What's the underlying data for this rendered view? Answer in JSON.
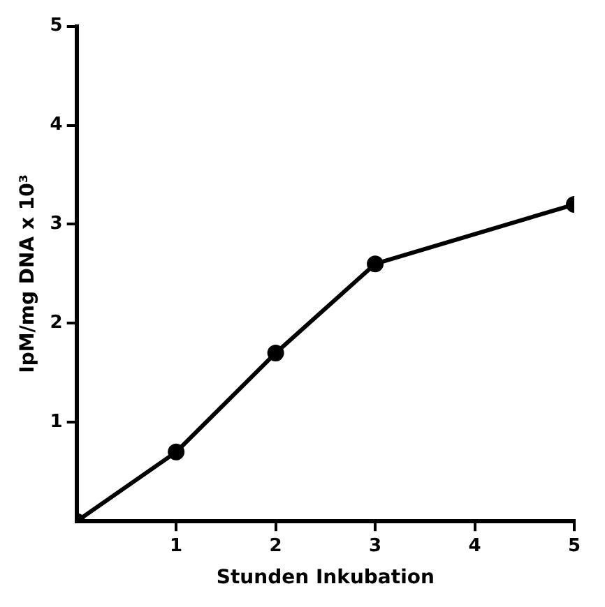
{
  "chart_data": {
    "type": "line",
    "xlabel": "Stunden Inkubation",
    "ylabel": "IpM/mg DNA x 10³",
    "x": [
      0,
      1,
      2,
      3,
      5
    ],
    "series": [
      {
        "color": "#000000",
        "values": [
          0,
          0.7,
          1.7,
          2.6,
          3.2
        ]
      }
    ],
    "xlim": [
      0,
      5
    ],
    "xticks": [
      1,
      2,
      3,
      4,
      5
    ],
    "ylim": [
      0,
      5
    ],
    "yticks": [
      1,
      2,
      3,
      4,
      5
    ],
    "grid": false,
    "legend": false,
    "marker": "circle",
    "line_style": "solid"
  }
}
